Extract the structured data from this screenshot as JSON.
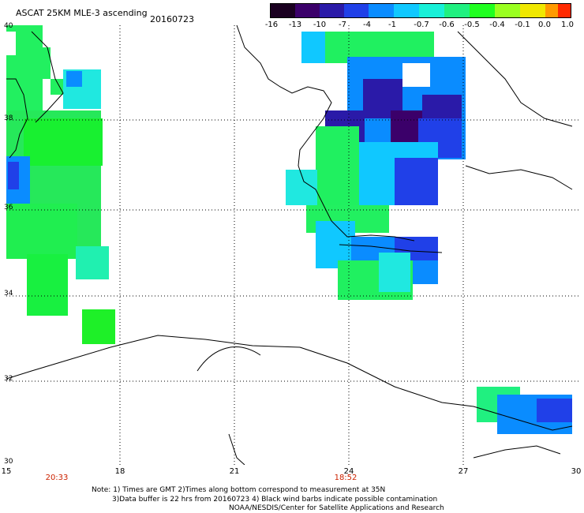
{
  "header": {
    "title": "ASCAT 25KM MLE-3 ascending",
    "date": "20160723"
  },
  "colorbar": {
    "labels": [
      "-16",
      "-13",
      "-10",
      "-7",
      "-4",
      "-1",
      "-0.7",
      "-0.6",
      "-0.5",
      "-0.4",
      "-0.1",
      "0.0",
      "1.0"
    ],
    "colors": [
      "#1a0020",
      "#3b006a",
      "#2a1aa8",
      "#2040e8",
      "#0a8cff",
      "#10c8ff",
      "#18f0d8",
      "#20f080",
      "#20ff20",
      "#9aff20",
      "#f0e800",
      "#ff9a00",
      "#ff2a00"
    ]
  },
  "axes": {
    "lat_labels": [
      "40",
      "38",
      "36",
      "34",
      "32",
      "30"
    ],
    "lon_labels": [
      "15",
      "18",
      "21",
      "24",
      "27",
      "30"
    ]
  },
  "time_labels": [
    "20:33",
    "18:52"
  ],
  "footer": {
    "note_line1": "Note: 1) Times are GMT 2)Times along bottom correspond to measurement at 35N",
    "note_line2": "3)Data buffer is 22 hrs from 20160723 4) Black wind barbs indicate possible contamination",
    "credit": "NOAA/NESDIS/Center for Satellite Applications and Research"
  }
}
